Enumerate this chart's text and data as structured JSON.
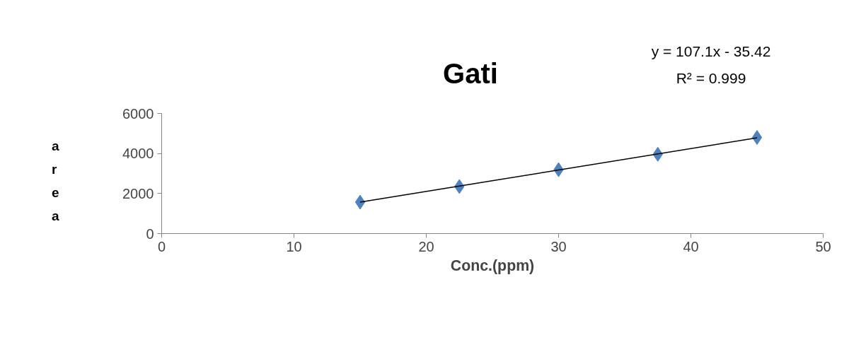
{
  "chart_data": {
    "type": "scatter",
    "title": "Gati",
    "xlabel": "Conc.(ppm)",
    "ylabel": "area",
    "xlim": [
      0,
      50
    ],
    "xticks": [
      0,
      10,
      20,
      30,
      40,
      50
    ],
    "ylim": [
      0,
      6000
    ],
    "yticks": [
      0,
      2000,
      4000,
      6000
    ],
    "grid": false,
    "marker": "diamond",
    "series": [
      {
        "color": "#4f81bd",
        "x": [
          15,
          22.5,
          30,
          37.5,
          45
        ],
        "values": [
          1570,
          2350,
          3190,
          3960,
          4800
        ]
      },
      {
        "type": "line",
        "color": "#000000",
        "x": [
          15,
          45
        ],
        "values": [
          1570,
          4780
        ],
        "line_style": "solid",
        "marker": "none"
      }
    ],
    "annotations": [
      "y = 107.1x - 35.42",
      "R² = 0.999"
    ]
  }
}
